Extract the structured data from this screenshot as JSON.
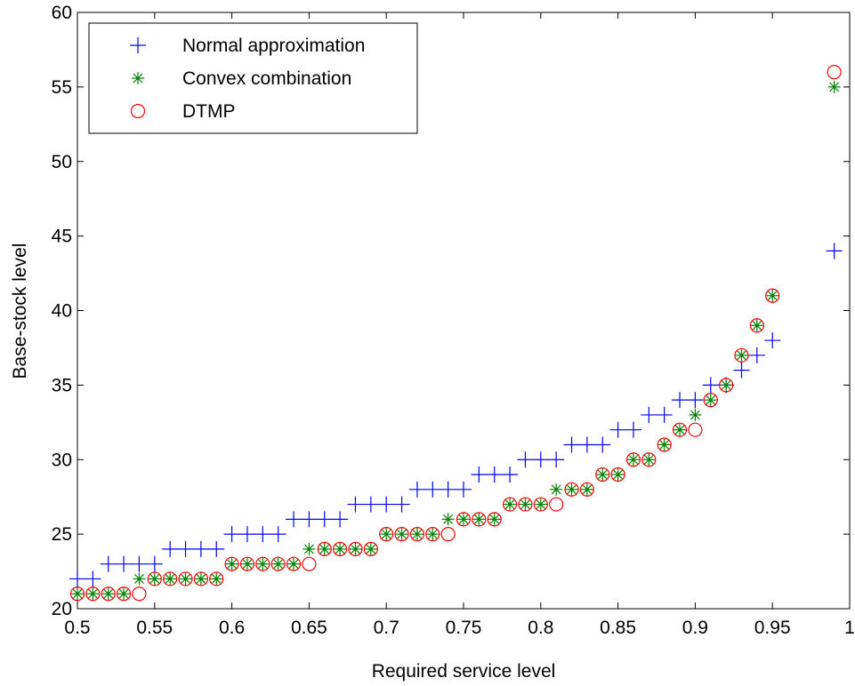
{
  "chart_data": {
    "type": "scatter",
    "title": "",
    "xlabel": "Required service level",
    "ylabel": "Base-stock level",
    "xlim": [
      0.5,
      1
    ],
    "ylim": [
      20,
      60
    ],
    "xticks": [
      0.5,
      0.55,
      0.6,
      0.65,
      0.7,
      0.75,
      0.8,
      0.85,
      0.9,
      0.95,
      1
    ],
    "xtick_labels": [
      "0.5",
      "0.55",
      "0.6",
      "0.65",
      "0.7",
      "0.75",
      "0.8",
      "0.85",
      "0.9",
      "0.95",
      "1"
    ],
    "yticks": [
      20,
      25,
      30,
      35,
      40,
      45,
      50,
      55,
      60
    ],
    "ytick_labels": [
      "20",
      "25",
      "30",
      "35",
      "40",
      "45",
      "50",
      "55",
      "60"
    ],
    "grid": false,
    "legend_position": "top-left",
    "series": [
      {
        "name": "Normal approximation",
        "marker": "plus",
        "color": "#0000ff",
        "x": [
          0.5,
          0.51,
          0.52,
          0.53,
          0.54,
          0.55,
          0.56,
          0.57,
          0.58,
          0.59,
          0.6,
          0.61,
          0.62,
          0.63,
          0.64,
          0.65,
          0.66,
          0.67,
          0.68,
          0.69,
          0.7,
          0.71,
          0.72,
          0.73,
          0.74,
          0.75,
          0.76,
          0.77,
          0.78,
          0.79,
          0.8,
          0.81,
          0.82,
          0.83,
          0.84,
          0.85,
          0.86,
          0.87,
          0.88,
          0.89,
          0.9,
          0.91,
          0.92,
          0.93,
          0.94,
          0.95,
          0.99
        ],
        "y": [
          22,
          22,
          23,
          23,
          23,
          23,
          24,
          24,
          24,
          24,
          25,
          25,
          25,
          25,
          26,
          26,
          26,
          26,
          27,
          27,
          27,
          27,
          28,
          28,
          28,
          28,
          29,
          29,
          29,
          30,
          30,
          30,
          31,
          31,
          31,
          32,
          32,
          33,
          33,
          34,
          34,
          35,
          35,
          36,
          37,
          38,
          44
        ]
      },
      {
        "name": "Convex combination",
        "marker": "asterisk",
        "color": "#008000",
        "x": [
          0.5,
          0.51,
          0.52,
          0.53,
          0.54,
          0.55,
          0.56,
          0.57,
          0.58,
          0.59,
          0.6,
          0.61,
          0.62,
          0.63,
          0.64,
          0.65,
          0.66,
          0.67,
          0.68,
          0.69,
          0.7,
          0.71,
          0.72,
          0.73,
          0.74,
          0.75,
          0.76,
          0.77,
          0.78,
          0.79,
          0.8,
          0.81,
          0.82,
          0.83,
          0.84,
          0.85,
          0.86,
          0.87,
          0.88,
          0.89,
          0.9,
          0.91,
          0.92,
          0.93,
          0.94,
          0.95,
          0.99
        ],
        "y": [
          21,
          21,
          21,
          21,
          22,
          22,
          22,
          22,
          22,
          22,
          23,
          23,
          23,
          23,
          23,
          24,
          24,
          24,
          24,
          24,
          25,
          25,
          25,
          25,
          26,
          26,
          26,
          26,
          27,
          27,
          27,
          28,
          28,
          28,
          29,
          29,
          30,
          30,
          31,
          32,
          33,
          34,
          35,
          37,
          39,
          41,
          55
        ]
      },
      {
        "name": "DTMP",
        "marker": "circle",
        "color": "#ff0000",
        "x": [
          0.5,
          0.51,
          0.52,
          0.53,
          0.54,
          0.55,
          0.56,
          0.57,
          0.58,
          0.59,
          0.6,
          0.61,
          0.62,
          0.63,
          0.64,
          0.65,
          0.66,
          0.67,
          0.68,
          0.69,
          0.7,
          0.71,
          0.72,
          0.73,
          0.74,
          0.75,
          0.76,
          0.77,
          0.78,
          0.79,
          0.8,
          0.81,
          0.82,
          0.83,
          0.84,
          0.85,
          0.86,
          0.87,
          0.88,
          0.89,
          0.9,
          0.91,
          0.92,
          0.93,
          0.94,
          0.95,
          0.99
        ],
        "y": [
          21,
          21,
          21,
          21,
          21,
          22,
          22,
          22,
          22,
          22,
          23,
          23,
          23,
          23,
          23,
          23,
          24,
          24,
          24,
          24,
          25,
          25,
          25,
          25,
          25,
          26,
          26,
          26,
          27,
          27,
          27,
          27,
          28,
          28,
          29,
          29,
          30,
          30,
          31,
          32,
          32,
          34,
          35,
          37,
          39,
          41,
          56
        ]
      }
    ]
  }
}
